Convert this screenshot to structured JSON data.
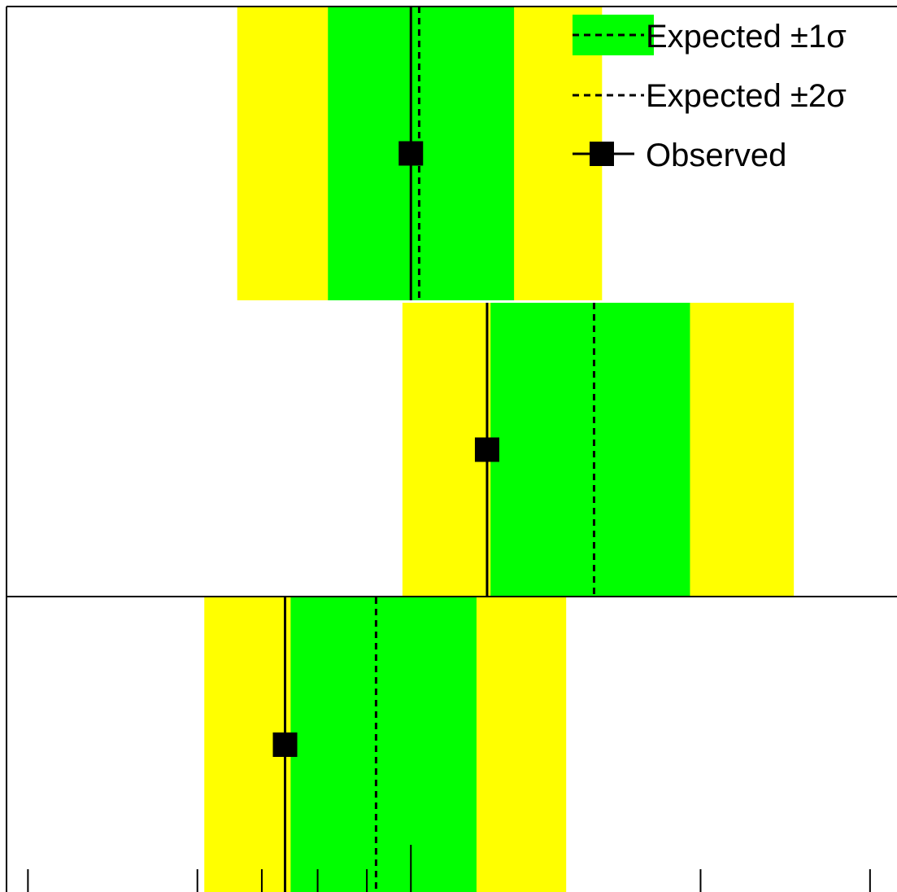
{
  "chart_data": {
    "type": "limit-bands",
    "title": "",
    "xlabel": "",
    "ylabel": "",
    "x_scale": "log",
    "xlim": [
      0.38,
      3.2
    ],
    "categories": [
      "",
      "",
      ""
    ],
    "rows": [
      {
        "observed": 1.0,
        "expected": 1.02,
        "sigma1": [
          0.82,
          1.28
        ],
        "sigma2": [
          0.66,
          1.58
        ]
      },
      {
        "observed": 1.2,
        "expected": 1.55,
        "sigma1": [
          1.21,
          1.95
        ],
        "sigma2": [
          0.98,
          2.5
        ]
      },
      {
        "observed": 0.74,
        "expected": 0.92,
        "sigma1": [
          0.75,
          1.17
        ],
        "sigma2": [
          0.61,
          1.45
        ]
      }
    ],
    "legend": {
      "entries": [
        "Expected ±1σ",
        "Expected ±2σ",
        "Observed"
      ],
      "placement": "top-right"
    },
    "colors": {
      "sigma1": "#00ff00",
      "sigma2": "#ffff00",
      "observed": "#000000",
      "expected": "#000000"
    },
    "grid": false
  }
}
